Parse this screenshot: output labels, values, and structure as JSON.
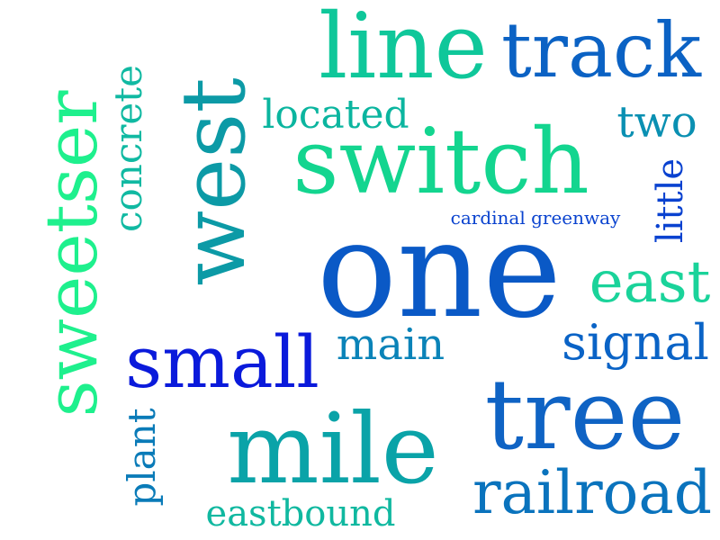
{
  "words": [
    {
      "key": "one",
      "text": "one",
      "color": "#0a59c6"
    },
    {
      "key": "tree",
      "text": "tree",
      "color": "#0f63c4"
    },
    {
      "key": "mile",
      "text": "mile",
      "color": "#0aa3a8"
    },
    {
      "key": "switch",
      "text": "switch",
      "color": "#13d58f"
    },
    {
      "key": "line",
      "text": "line",
      "color": "#0fc79a"
    },
    {
      "key": "track",
      "text": "track",
      "color": "#0b62c4"
    },
    {
      "key": "west",
      "text": "west",
      "color": "#0c9aa6"
    },
    {
      "key": "sweetser",
      "text": "sweetser",
      "color": "#1ef08d"
    },
    {
      "key": "small",
      "text": "small",
      "color": "#0a1adb"
    },
    {
      "key": "railroad",
      "text": "railroad",
      "color": "#0a73bd"
    },
    {
      "key": "east",
      "text": "east",
      "color": "#1ad39a"
    },
    {
      "key": "signal",
      "text": "signal",
      "color": "#0a63c6"
    },
    {
      "key": "main",
      "text": "main",
      "color": "#0a83b8"
    },
    {
      "key": "located",
      "text": "located",
      "color": "#0bb59f"
    },
    {
      "key": "two",
      "text": "two",
      "color": "#0a90b2"
    },
    {
      "key": "concrete",
      "text": "concrete",
      "color": "#10b9a2"
    },
    {
      "key": "plant",
      "text": "plant",
      "color": "#0a7bb8"
    },
    {
      "key": "little",
      "text": "little",
      "color": "#0a42d0"
    },
    {
      "key": "eastbound",
      "text": "eastbound",
      "color": "#10b8a0"
    },
    {
      "key": "cardinal",
      "text": "cardinal greenway",
      "color": "#0a43cf"
    }
  ]
}
